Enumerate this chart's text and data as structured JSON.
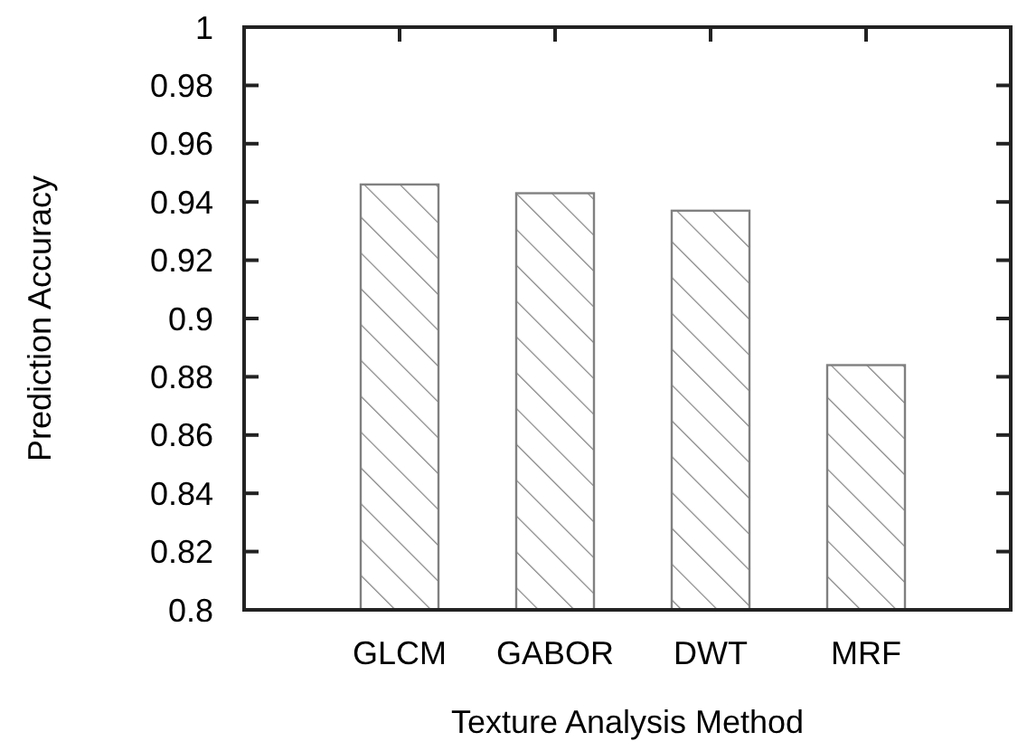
{
  "chart_data": {
    "type": "bar",
    "xlabel": "Texture Analysis Method",
    "ylabel": "Prediction Accuracy",
    "categories": [
      "GLCM",
      "GABOR",
      "DWT",
      "MRF"
    ],
    "values": [
      0.946,
      0.943,
      0.937,
      0.884
    ],
    "color": "#808080",
    "ylim": [
      0.8,
      1
    ],
    "yticks": [
      0.8,
      0.82,
      0.84,
      0.86,
      0.88,
      0.9,
      0.92,
      0.94,
      0.96,
      0.98,
      1
    ]
  }
}
